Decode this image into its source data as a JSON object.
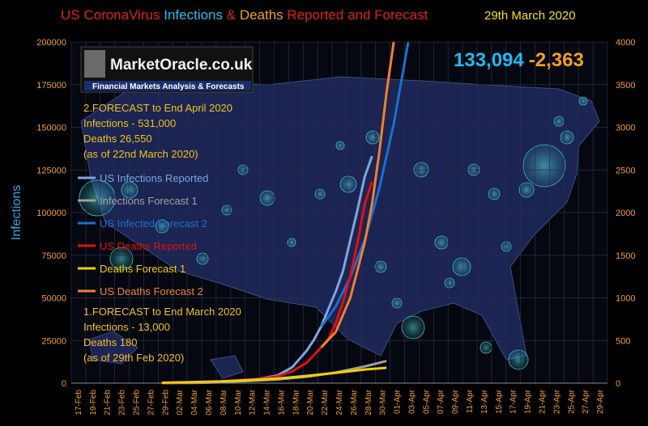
{
  "title": {
    "part1": "US CoronaVirus ",
    "part2": "Infections",
    "part3": " & ",
    "part4": "Deaths",
    "part5": " Reported and Forecast",
    "date": "29th March 2020"
  },
  "logo": {
    "name": "MarketOracle.co.uk",
    "tagline": "Financial Markets Analysis & Forecasts"
  },
  "headline": {
    "infections": "133,094",
    "deaths": "-2,363"
  },
  "notes": {
    "april": [
      "2.FORECAST to End April 2020",
      "Infections - 531,000",
      "Deaths 26,550",
      "(as of  22nd March  2020)"
    ],
    "march": [
      "1.FORECAST to End March 2020",
      "Infections - 13,000",
      "Deaths 180",
      "(as of 29th Feb  2020)"
    ]
  },
  "colors": {
    "infections_reported": "#7BA7E0",
    "infections_forecast1": "#A0A0A0",
    "infected_forecast2": "#1A6FD0",
    "deaths_reported": "#E01010",
    "deaths_forecast1": "#F0D000",
    "deaths_forecast2": "#F08030",
    "left_axis": "#2AA8E0",
    "title_red": "#E02020",
    "title_cyan": "#20C0F0",
    "title_orange": "#F0A020",
    "title_yellow": "#F0E020"
  },
  "chart_data": {
    "type": "line",
    "ylabel": "Infections",
    "ylim_left": [
      0,
      200000
    ],
    "ylim_right": [
      0,
      4000
    ],
    "yticks_left": [
      "0",
      "25000",
      "50000",
      "75000",
      "100000",
      "125000",
      "150000",
      "175000",
      "200000"
    ],
    "yticks_right": [
      "0",
      "500",
      "1000",
      "1500",
      "2000",
      "2500",
      "3000",
      "3500",
      "4000"
    ],
    "xticks": [
      "17-Feb",
      "19-Feb",
      "21-Feb",
      "23-Feb",
      "25-Feb",
      "27-Feb",
      "29-Feb",
      "02-Mar",
      "04-Mar",
      "06-Mar",
      "08-Mar",
      "10-Mar",
      "12-Mar",
      "14-Mar",
      "16-Mar",
      "18-Mar",
      "20-Mar",
      "22-Mar",
      "24-Mar",
      "26-Mar",
      "28-Mar",
      "30-Mar",
      "01-Apr",
      "03-Apr",
      "05-Apr",
      "07-Apr",
      "09-Apr",
      "11-Apr",
      "13-Apr",
      "15-Apr",
      "17-Apr",
      "19-Apr",
      "21-Apr",
      "23-Apr",
      "25-Apr",
      "27-Apr",
      "29-Apr"
    ],
    "legend_placement": "left",
    "series": [
      {
        "name": "US Infections Reported",
        "axis": "left",
        "colorKey": "infections_reported",
        "x": [
          "29-Feb",
          "02-Mar",
          "04-Mar",
          "06-Mar",
          "08-Mar",
          "10-Mar",
          "12-Mar",
          "14-Mar",
          "16-Mar",
          "18-Mar",
          "20-Mar",
          "21-Mar",
          "22-Mar",
          "23-Mar",
          "24-Mar",
          "25-Mar",
          "26-Mar",
          "27-Mar",
          "28-Mar",
          "29-Mar"
        ],
        "y": [
          70,
          100,
          150,
          260,
          500,
          1000,
          1700,
          3000,
          4600,
          9400,
          19100,
          25500,
          33300,
          43700,
          53700,
          65800,
          83800,
          101700,
          121100,
          133094
        ]
      },
      {
        "name": "Infections Forecast 1",
        "axis": "left",
        "colorKey": "infections_forecast1",
        "x": [
          "29-Feb",
          "04-Mar",
          "08-Mar",
          "12-Mar",
          "16-Mar",
          "20-Mar",
          "24-Mar",
          "28-Mar",
          "31-Mar"
        ],
        "y": [
          60,
          300,
          700,
          1300,
          2200,
          3800,
          6200,
          9800,
          13000
        ]
      },
      {
        "name": "US Infected Forecast 2",
        "axis": "left",
        "colorKey": "infected_forecast2",
        "x": [
          "22-Mar",
          "24-Mar",
          "26-Mar",
          "28-Mar",
          "30-Mar",
          "01-Apr",
          "03-Apr"
        ],
        "y": [
          33000,
          45000,
          62000,
          84000,
          114000,
          152000,
          200000
        ]
      },
      {
        "name": "US Deaths Reported",
        "axis": "right",
        "colorKey": "deaths_reported",
        "x": [
          "29-Feb",
          "02-Mar",
          "04-Mar",
          "06-Mar",
          "08-Mar",
          "10-Mar",
          "12-Mar",
          "14-Mar",
          "16-Mar",
          "18-Mar",
          "20-Mar",
          "22-Mar",
          "23-Mar",
          "24-Mar",
          "25-Mar",
          "26-Mar",
          "27-Mar",
          "28-Mar",
          "29-Mar"
        ],
        "y": [
          1,
          6,
          11,
          14,
          21,
          31,
          43,
          55,
          80,
          140,
          240,
          420,
          520,
          700,
          950,
          1250,
          1650,
          2100,
          2363
        ]
      },
      {
        "name": "Deaths Forecast 1",
        "axis": "right",
        "colorKey": "deaths_forecast1",
        "x": [
          "29-Feb",
          "04-Mar",
          "08-Mar",
          "12-Mar",
          "16-Mar",
          "20-Mar",
          "24-Mar",
          "28-Mar",
          "31-Mar"
        ],
        "y": [
          5,
          12,
          20,
          35,
          55,
          85,
          120,
          160,
          180
        ]
      },
      {
        "name": "US Deaths Forecast 2",
        "axis": "right",
        "colorKey": "deaths_forecast2",
        "x": [
          "22-Mar",
          "24-Mar",
          "26-Mar",
          "28-Mar",
          "29-Mar",
          "30-Mar",
          "31-Mar",
          "01-Apr"
        ],
        "y": [
          420,
          600,
          1000,
          1650,
          2100,
          2700,
          3400,
          4000
        ]
      }
    ]
  }
}
